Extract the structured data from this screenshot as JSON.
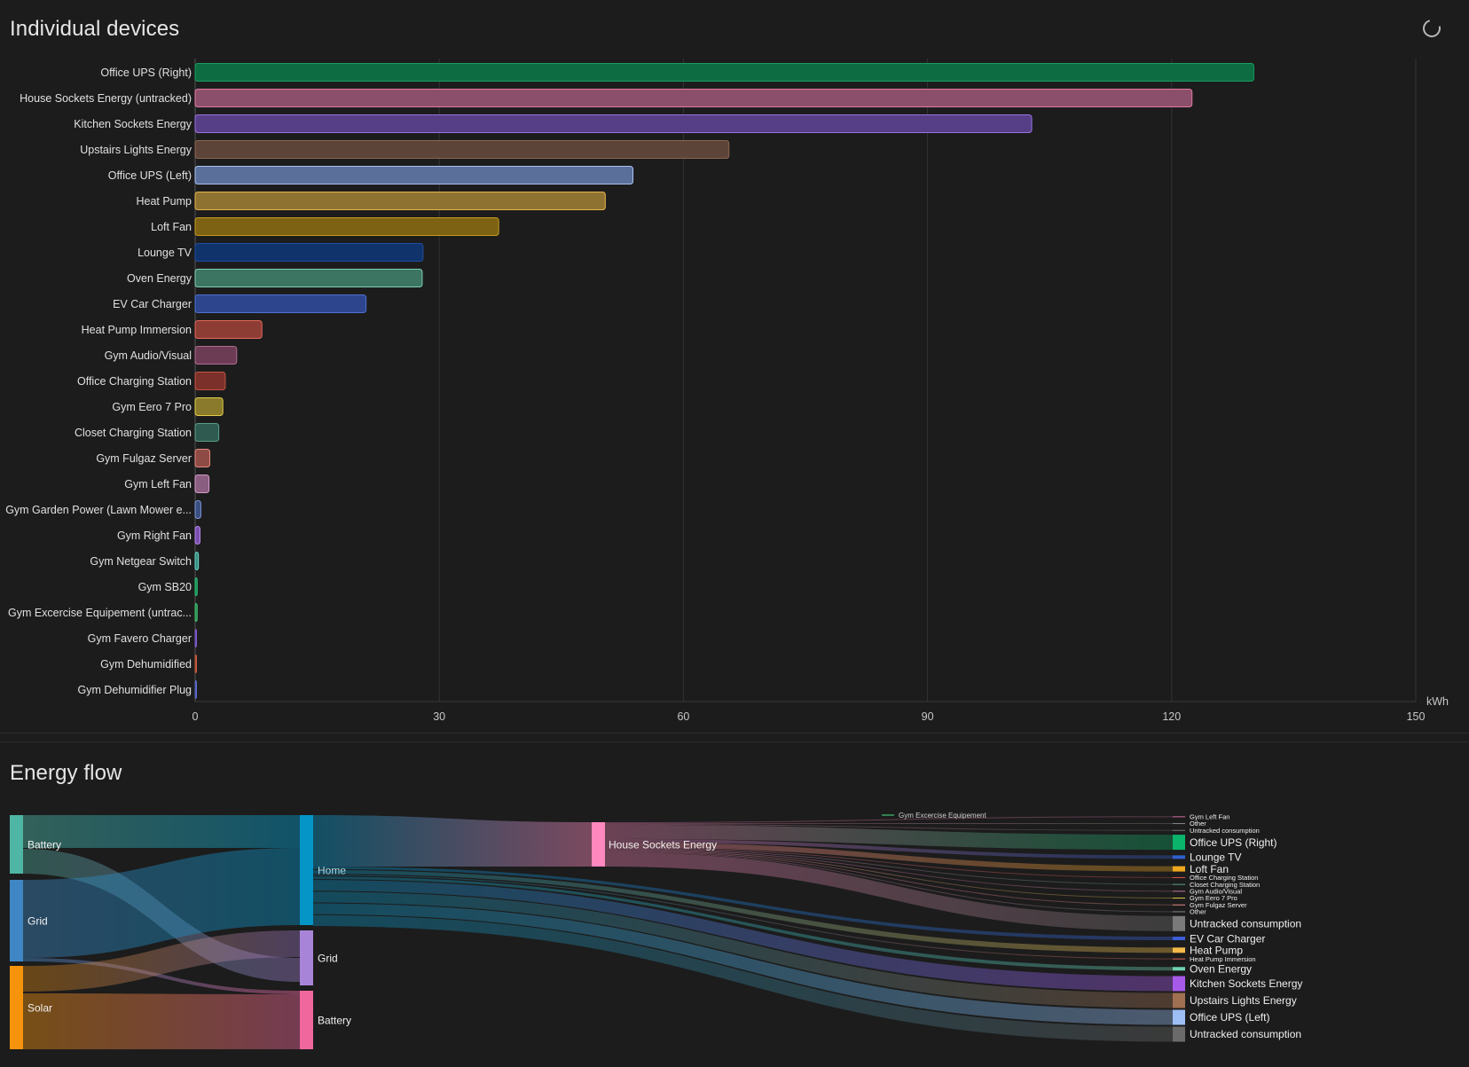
{
  "devices_card": {
    "title": "Individual devices",
    "refresh_icon": "refresh-spinner-icon"
  },
  "flow_card": {
    "title": "Energy flow"
  },
  "chart_data": [
    {
      "type": "bar",
      "orientation": "horizontal",
      "unit": "kWh",
      "xlim": [
        0,
        150
      ],
      "ticks": [
        0,
        30,
        60,
        90,
        120,
        150
      ],
      "grid": true,
      "categories": [
        "Office UPS (Right)",
        "House Sockets Energy (untracked)",
        "Kitchen Sockets Energy",
        "Upstairs Lights Energy",
        "Office UPS (Left)",
        "Heat Pump",
        "Loft Fan",
        "Lounge TV",
        "Oven Energy",
        "EV Car Charger",
        "Heat Pump Immersion",
        "Gym Audio/Visual",
        "Office Charging Station",
        "Gym Eero 7 Pro",
        "Closet Charging Station",
        "Gym Fulgaz Server",
        "Gym Left Fan",
        "Gym Garden Power (Lawn Mower e...",
        "Gym Right Fan",
        "Gym Netgear Switch",
        "Gym SB20",
        "Gym Excercise Equipement (untrac...",
        "Gym Favero Charger",
        "Gym Dehumidified",
        "Gym Dehumidifier Plug"
      ],
      "values": [
        130.1,
        122.5,
        102.8,
        65.6,
        53.8,
        50.4,
        37.3,
        28.0,
        27.9,
        21.0,
        8.2,
        5.1,
        3.7,
        3.4,
        2.9,
        1.8,
        1.7,
        0.7,
        0.6,
        0.4,
        0.25,
        0.25,
        0.15,
        0.1,
        0.1
      ],
      "colors": [
        "#0d6c42",
        "#8c4f6b",
        "#573f87",
        "#5d4438",
        "#5a6f99",
        "#8e7232",
        "#7e6213",
        "#10336b",
        "#3c7561",
        "#2c458c",
        "#8e3d35",
        "#6c3c54",
        "#7c302a",
        "#897b2b",
        "#2e5a4f",
        "#8e4a45",
        "#8a5e80",
        "#3a4f80",
        "#7a4fb0",
        "#3a8a80",
        "#1c8a50",
        "#2e8a50",
        "#6040a0",
        "#8a4030",
        "#4050a0"
      ],
      "borders": [
        "#1a9a60",
        "#e07ca3",
        "#9872e0",
        "#8c6652",
        "#a9c3f5",
        "#e8b54a",
        "#c69a1e",
        "#204ea0",
        "#7fd1b2",
        "#4f71d1",
        "#e2695c",
        "#b06d90",
        "#c05444",
        "#e3cc4a",
        "#5c9e8c",
        "#e68c84",
        "#d49cc8",
        "#7c98d8",
        "#b48ae8",
        "#6ad8c8",
        "#2cc07a",
        "#40c070",
        "#8060d0",
        "#d06040",
        "#6070d0"
      ]
    },
    {
      "type": "sankey",
      "nodes_left": [
        {
          "label": "Battery",
          "color": "#4fb5a4"
        },
        {
          "label": "Grid",
          "color": "#3f87c4"
        },
        {
          "label": "Solar",
          "color": "#f5940c"
        }
      ],
      "nodes_middle": [
        {
          "label": "Home",
          "color": "#0596c7"
        },
        {
          "label": "Grid",
          "color": "#a884d8"
        },
        {
          "label": "Battery",
          "color": "#f0679d"
        }
      ],
      "sockets_node": {
        "label": "House Sockets Energy",
        "color": "#ff88be"
      },
      "sockets_children": [
        {
          "label": "Gym Excercise Equipement",
          "color": "#3fa061"
        }
      ],
      "right_nodes": [
        {
          "label": "Gym Left Fan",
          "size": "tiny",
          "color": "#d470a8"
        },
        {
          "label": "Other",
          "size": "tiny",
          "color": "#888888"
        },
        {
          "label": "Untracked consumption",
          "size": "tiny",
          "color": "#777777"
        },
        {
          "label": "Office UPS (Right)",
          "size": "big",
          "color": "#0ab46a"
        },
        {
          "label": "Lounge TV",
          "size": "mid",
          "color": "#2f5fd0"
        },
        {
          "label": "Loft Fan",
          "size": "mid2",
          "color": "#f0a81e"
        },
        {
          "label": "Office Charging Station",
          "size": "tiny",
          "color": "#e05444"
        },
        {
          "label": "Closet Charging Station",
          "size": "tiny",
          "color": "#5c9e8c"
        },
        {
          "label": "Gym Audio/Visual",
          "size": "tiny",
          "color": "#c07aa0"
        },
        {
          "label": "Gym Eero 7 Pro",
          "size": "tiny",
          "color": "#e3cc4a"
        },
        {
          "label": "Gym Fulgaz Server",
          "size": "tiny",
          "color": "#e68c84"
        },
        {
          "label": "Other",
          "size": "tiny",
          "color": "#888888"
        },
        {
          "label": "Untracked consumption",
          "size": "big",
          "color": "#7a7a7a"
        },
        {
          "label": "EV Car Charger",
          "size": "mid",
          "color": "#3c5fd8"
        },
        {
          "label": "Heat Pump",
          "size": "mid2",
          "color": "#f2b948"
        },
        {
          "label": "Heat Pump Immersion",
          "size": "tiny",
          "color": "#e26a5c"
        },
        {
          "label": "Oven Energy",
          "size": "mid",
          "color": "#6dd1b0"
        },
        {
          "label": "Kitchen Sockets Energy",
          "size": "big",
          "color": "#a75ae8"
        },
        {
          "label": "Upstairs Lights Energy",
          "size": "big",
          "color": "#a07052"
        },
        {
          "label": "Office UPS (Left)",
          "size": "big",
          "color": "#9dbff5"
        },
        {
          "label": "Untracked consumption",
          "size": "big",
          "color": "#6a6a6a"
        }
      ]
    }
  ]
}
